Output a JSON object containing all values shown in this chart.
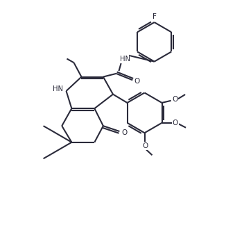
{
  "background_color": "#ffffff",
  "line_color": "#2a2a3a",
  "line_width": 1.5,
  "figsize": [
    3.26,
    3.31
  ],
  "dpi": 100,
  "xlim": [
    0,
    10
  ],
  "ylim": [
    0,
    10.5
  ]
}
